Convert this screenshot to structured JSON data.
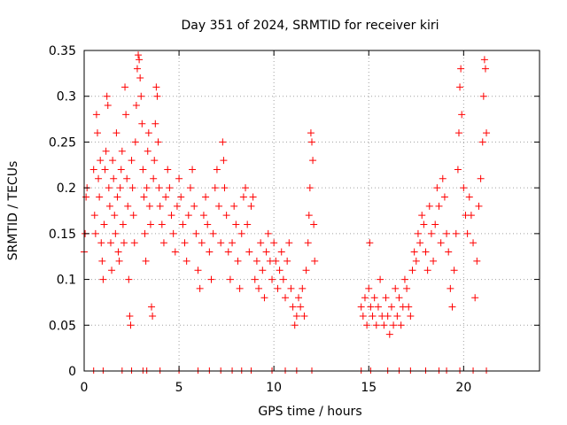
{
  "chart_data": {
    "type": "scatter",
    "title": "Day 351 of 2024, SRMTID for receiver kiri",
    "xlabel": "GPS time / hours",
    "ylabel": "SRMTID / TECUs",
    "xlim": [
      0,
      24
    ],
    "ylim": [
      0,
      0.35
    ],
    "x_ticks": [
      0,
      5,
      10,
      15,
      20
    ],
    "y_ticks": [
      0,
      0.05,
      0.1,
      0.15,
      0.2,
      0.25,
      0.3,
      0.35
    ],
    "x_tick_labels": [
      "0",
      "5",
      "10",
      "15",
      "20"
    ],
    "y_tick_labels": [
      "0",
      "0.05",
      "0.1",
      "0.15",
      "0.2",
      "0.25",
      "0.3",
      "0.35"
    ],
    "grid": true,
    "marker": "+",
    "color": "#ff0000",
    "series": [
      {
        "name": "SRMTID",
        "points": [
          [
            0.0,
            0.13
          ],
          [
            0.05,
            0.15
          ],
          [
            0.1,
            0.19
          ],
          [
            0.15,
            0.2
          ],
          [
            0.5,
            0.22
          ],
          [
            0.55,
            0.17
          ],
          [
            0.6,
            0.15
          ],
          [
            0.65,
            0.28
          ],
          [
            0.7,
            0.26
          ],
          [
            0.75,
            0.21
          ],
          [
            0.8,
            0.19
          ],
          [
            0.85,
            0.23
          ],
          [
            0.9,
            0.14
          ],
          [
            0.95,
            0.12
          ],
          [
            1.0,
            0.1
          ],
          [
            1.05,
            0.16
          ],
          [
            1.1,
            0.22
          ],
          [
            1.15,
            0.24
          ],
          [
            1.2,
            0.3
          ],
          [
            1.25,
            0.29
          ],
          [
            1.3,
            0.2
          ],
          [
            1.35,
            0.18
          ],
          [
            1.4,
            0.14
          ],
          [
            1.45,
            0.11
          ],
          [
            1.5,
            0.23
          ],
          [
            1.55,
            0.21
          ],
          [
            1.6,
            0.17
          ],
          [
            1.65,
            0.15
          ],
          [
            1.7,
            0.26
          ],
          [
            1.75,
            0.19
          ],
          [
            1.8,
            0.13
          ],
          [
            1.85,
            0.12
          ],
          [
            1.9,
            0.2
          ],
          [
            1.95,
            0.22
          ],
          [
            2.0,
            0.24
          ],
          [
            2.05,
            0.16
          ],
          [
            2.1,
            0.14
          ],
          [
            2.15,
            0.31
          ],
          [
            2.2,
            0.28
          ],
          [
            2.25,
            0.21
          ],
          [
            2.3,
            0.18
          ],
          [
            2.35,
            0.1
          ],
          [
            2.4,
            0.06
          ],
          [
            2.45,
            0.05
          ],
          [
            2.5,
            0.23
          ],
          [
            2.55,
            0.2
          ],
          [
            2.6,
            0.17
          ],
          [
            2.65,
            0.14
          ],
          [
            2.7,
            0.25
          ],
          [
            2.75,
            0.29
          ],
          [
            2.8,
            0.33
          ],
          [
            2.85,
            0.345
          ],
          [
            2.9,
            0.34
          ],
          [
            2.95,
            0.32
          ],
          [
            3.0,
            0.3
          ],
          [
            3.05,
            0.27
          ],
          [
            3.1,
            0.22
          ],
          [
            3.15,
            0.19
          ],
          [
            3.2,
            0.15
          ],
          [
            3.25,
            0.12
          ],
          [
            3.3,
            0.2
          ],
          [
            3.35,
            0.24
          ],
          [
            3.4,
            0.26
          ],
          [
            3.45,
            0.18
          ],
          [
            3.5,
            0.16
          ],
          [
            3.55,
            0.07
          ],
          [
            3.6,
            0.06
          ],
          [
            3.65,
            0.21
          ],
          [
            3.7,
            0.23
          ],
          [
            3.75,
            0.27
          ],
          [
            3.8,
            0.31
          ],
          [
            3.85,
            0.3
          ],
          [
            3.9,
            0.25
          ],
          [
            3.95,
            0.2
          ],
          [
            4.0,
            0.18
          ],
          [
            4.1,
            0.16
          ],
          [
            4.2,
            0.14
          ],
          [
            4.3,
            0.19
          ],
          [
            4.4,
            0.22
          ],
          [
            4.5,
            0.2
          ],
          [
            4.6,
            0.17
          ],
          [
            4.7,
            0.15
          ],
          [
            4.8,
            0.13
          ],
          [
            4.9,
            0.18
          ],
          [
            5.0,
            0.21
          ],
          [
            5.1,
            0.19
          ],
          [
            5.2,
            0.16
          ],
          [
            5.3,
            0.14
          ],
          [
            5.4,
            0.12
          ],
          [
            5.5,
            0.17
          ],
          [
            5.6,
            0.2
          ],
          [
            5.7,
            0.22
          ],
          [
            5.8,
            0.18
          ],
          [
            5.9,
            0.15
          ],
          [
            6.0,
            0.11
          ],
          [
            6.1,
            0.09
          ],
          [
            6.2,
            0.14
          ],
          [
            6.3,
            0.17
          ],
          [
            6.4,
            0.19
          ],
          [
            6.5,
            0.16
          ],
          [
            6.6,
            0.13
          ],
          [
            6.7,
            0.1
          ],
          [
            6.8,
            0.15
          ],
          [
            6.9,
            0.2
          ],
          [
            7.0,
            0.22
          ],
          [
            7.1,
            0.18
          ],
          [
            7.2,
            0.14
          ],
          [
            7.3,
            0.25
          ],
          [
            7.35,
            0.23
          ],
          [
            7.4,
            0.2
          ],
          [
            7.5,
            0.17
          ],
          [
            7.6,
            0.13
          ],
          [
            7.7,
            0.1
          ],
          [
            7.8,
            0.14
          ],
          [
            7.9,
            0.18
          ],
          [
            8.0,
            0.16
          ],
          [
            8.1,
            0.12
          ],
          [
            8.2,
            0.09
          ],
          [
            8.3,
            0.15
          ],
          [
            8.4,
            0.19
          ],
          [
            8.5,
            0.2
          ],
          [
            8.6,
            0.16
          ],
          [
            8.7,
            0.13
          ],
          [
            8.8,
            0.18
          ],
          [
            8.9,
            0.19
          ],
          [
            9.0,
            0.1
          ],
          [
            9.1,
            0.12
          ],
          [
            9.2,
            0.09
          ],
          [
            9.3,
            0.14
          ],
          [
            9.4,
            0.11
          ],
          [
            9.5,
            0.08
          ],
          [
            9.6,
            0.13
          ],
          [
            9.7,
            0.15
          ],
          [
            9.8,
            0.12
          ],
          [
            9.9,
            0.1
          ],
          [
            10.0,
            0.14
          ],
          [
            10.1,
            0.12
          ],
          [
            10.2,
            0.09
          ],
          [
            10.3,
            0.11
          ],
          [
            10.4,
            0.13
          ],
          [
            10.5,
            0.1
          ],
          [
            10.6,
            0.08
          ],
          [
            10.7,
            0.12
          ],
          [
            10.8,
            0.14
          ],
          [
            10.9,
            0.09
          ],
          [
            11.0,
            0.07
          ],
          [
            11.1,
            0.05
          ],
          [
            11.2,
            0.06
          ],
          [
            11.3,
            0.08
          ],
          [
            11.4,
            0.07
          ],
          [
            11.5,
            0.09
          ],
          [
            11.6,
            0.06
          ],
          [
            11.7,
            0.11
          ],
          [
            11.8,
            0.14
          ],
          [
            11.85,
            0.17
          ],
          [
            11.9,
            0.2
          ],
          [
            11.95,
            0.26
          ],
          [
            12.0,
            0.25
          ],
          [
            12.05,
            0.23
          ],
          [
            12.1,
            0.16
          ],
          [
            12.15,
            0.12
          ],
          [
            14.6,
            0.07
          ],
          [
            14.7,
            0.06
          ],
          [
            14.8,
            0.08
          ],
          [
            14.9,
            0.05
          ],
          [
            15.0,
            0.09
          ],
          [
            15.05,
            0.14
          ],
          [
            15.1,
            0.07
          ],
          [
            15.2,
            0.06
          ],
          [
            15.3,
            0.08
          ],
          [
            15.4,
            0.05
          ],
          [
            15.5,
            0.07
          ],
          [
            15.6,
            0.1
          ],
          [
            15.7,
            0.06
          ],
          [
            15.8,
            0.05
          ],
          [
            15.9,
            0.08
          ],
          [
            16.0,
            0.06
          ],
          [
            16.1,
            0.04
          ],
          [
            16.2,
            0.07
          ],
          [
            16.3,
            0.05
          ],
          [
            16.4,
            0.09
          ],
          [
            16.5,
            0.06
          ],
          [
            16.6,
            0.08
          ],
          [
            16.7,
            0.05
          ],
          [
            16.8,
            0.07
          ],
          [
            16.9,
            0.1
          ],
          [
            17.0,
            0.09
          ],
          [
            17.1,
            0.07
          ],
          [
            17.2,
            0.06
          ],
          [
            17.3,
            0.11
          ],
          [
            17.4,
            0.13
          ],
          [
            17.5,
            0.12
          ],
          [
            17.6,
            0.15
          ],
          [
            17.7,
            0.14
          ],
          [
            17.8,
            0.17
          ],
          [
            17.9,
            0.16
          ],
          [
            18.0,
            0.13
          ],
          [
            18.1,
            0.11
          ],
          [
            18.2,
            0.18
          ],
          [
            18.3,
            0.15
          ],
          [
            18.4,
            0.12
          ],
          [
            18.5,
            0.16
          ],
          [
            18.6,
            0.2
          ],
          [
            18.7,
            0.18
          ],
          [
            18.8,
            0.14
          ],
          [
            18.9,
            0.21
          ],
          [
            19.0,
            0.19
          ],
          [
            19.1,
            0.15
          ],
          [
            19.2,
            0.13
          ],
          [
            19.3,
            0.09
          ],
          [
            19.4,
            0.07
          ],
          [
            19.5,
            0.11
          ],
          [
            19.6,
            0.15
          ],
          [
            19.7,
            0.22
          ],
          [
            19.75,
            0.26
          ],
          [
            19.8,
            0.31
          ],
          [
            19.85,
            0.33
          ],
          [
            19.9,
            0.28
          ],
          [
            20.0,
            0.2
          ],
          [
            20.1,
            0.17
          ],
          [
            20.2,
            0.15
          ],
          [
            20.3,
            0.19
          ],
          [
            20.4,
            0.17
          ],
          [
            20.5,
            0.14
          ],
          [
            20.6,
            0.08
          ],
          [
            20.7,
            0.12
          ],
          [
            20.8,
            0.18
          ],
          [
            20.9,
            0.21
          ],
          [
            21.0,
            0.25
          ],
          [
            21.05,
            0.3
          ],
          [
            21.1,
            0.34
          ],
          [
            21.15,
            0.33
          ],
          [
            21.2,
            0.26
          ]
        ]
      }
    ],
    "baseline_marks_x": [
      0.5,
      1.0,
      2.0,
      2.5,
      3.1,
      3.3,
      4.0,
      5.0,
      6.0,
      6.6,
      7.2,
      7.8,
      8.3,
      8.8,
      9.9,
      10.6,
      11.2,
      12.0,
      14.6,
      15.1,
      16.0,
      16.6,
      17.2,
      18.0,
      18.7,
      19.1,
      19.8,
      20.5,
      21.2
    ]
  }
}
